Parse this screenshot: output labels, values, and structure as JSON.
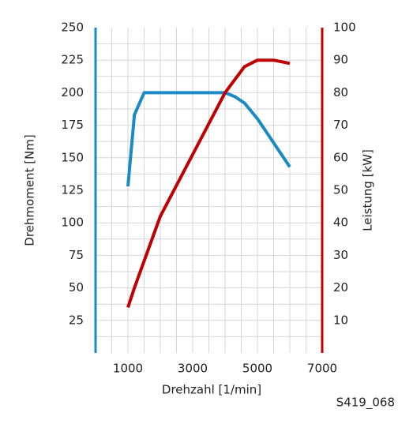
{
  "chart_data": {
    "type": "line",
    "x_label": "Drehzahl [1/min]",
    "y_label": "Drehmoment [Nm]",
    "y2_label": "Leistung [kW]",
    "figure_id": "S419_068",
    "xlim": [
      0,
      7000
    ],
    "xticks": [
      1000,
      3000,
      5000,
      7000
    ],
    "xminorticks": [
      500,
      1000,
      1500,
      2000,
      2500,
      3000,
      3500,
      4000,
      4500,
      5000,
      5500,
      6000,
      6500
    ],
    "ylim": [
      0,
      250
    ],
    "yticks": [
      25,
      50,
      75,
      100,
      125,
      150,
      175,
      200,
      225,
      250
    ],
    "yminorticks": [
      12.5,
      25,
      37.5,
      50,
      62.5,
      75,
      87.5,
      100,
      112.5,
      125,
      137.5,
      150,
      162.5,
      175,
      187.5,
      200,
      212.5,
      225,
      237.5
    ],
    "y2lim": [
      0,
      100
    ],
    "y2ticks": [
      10,
      20,
      30,
      40,
      50,
      60,
      70,
      80,
      90,
      100
    ],
    "y_axis_color": "#1a8ac6",
    "y2_axis_color": "#c00000",
    "grid": true,
    "series": [
      {
        "name": "Drehmoment",
        "color": "#1a8ac6",
        "x": [
          1000,
          1200,
          1500,
          4000,
          4300,
          4600,
          5000,
          6000
        ],
        "values": [
          128,
          183,
          200,
          200,
          197,
          192,
          180,
          143
        ]
      },
      {
        "name": "Leistung",
        "color": "#c00000",
        "axis": "y2",
        "x": [
          1000,
          1200,
          2000,
          3000,
          4000,
          4600,
          5000,
          5500,
          6000
        ],
        "values": [
          14,
          20,
          42,
          61,
          80,
          88,
          90,
          90,
          89
        ]
      }
    ]
  }
}
